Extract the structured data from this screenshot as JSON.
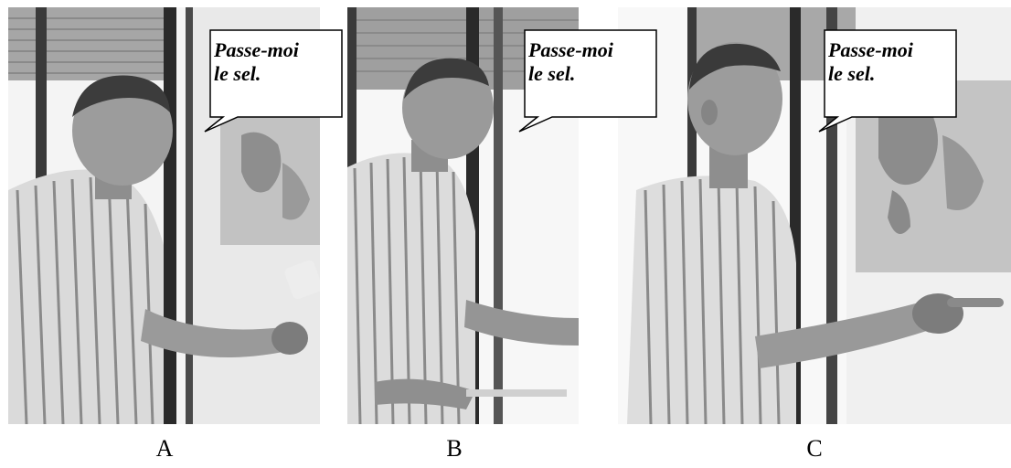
{
  "panels": [
    {
      "id": "A",
      "caption": "A",
      "speech": "Passe-moi\nle sel."
    },
    {
      "id": "B",
      "caption": "B",
      "speech": "Passe-moi\nle sel."
    },
    {
      "id": "C",
      "caption": "C",
      "speech": "Passe-moi\nle sel."
    }
  ],
  "colors": {
    "wall": "#e6e6e6",
    "window_frame": "#2a2a2a",
    "shutter": "#9a9a9a",
    "map": "#b8b8b8",
    "skin": "#8c8c8c",
    "shirt": "#dcdcdc",
    "stripe": "#7a7a7a",
    "hair": "#3a3a3a"
  }
}
